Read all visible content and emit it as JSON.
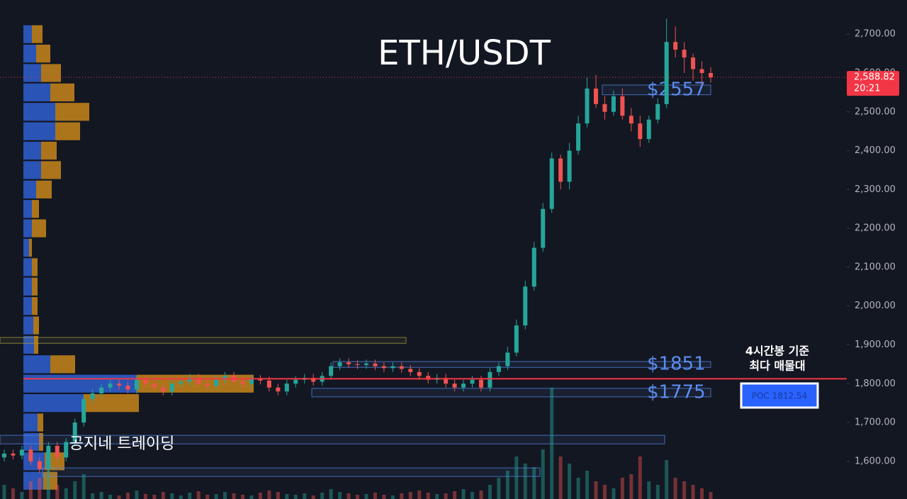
{
  "chart_data": {
    "type": "candlestick",
    "title": "ETH/USDT",
    "ylim": [
      1503,
      2788
    ],
    "yticks": [
      {
        "value": 1600,
        "label": "1,600.00"
      },
      {
        "value": 1700,
        "label": "1,700.00"
      },
      {
        "value": 1800,
        "label": "1,800.00"
      },
      {
        "value": 1900,
        "label": "1,900.00"
      },
      {
        "value": 2000,
        "label": "2,000.00"
      },
      {
        "value": 2100,
        "label": "2,100.00"
      },
      {
        "value": 2200,
        "label": "2,200.00"
      },
      {
        "value": 2300,
        "label": "2,300.00"
      },
      {
        "value": 2400,
        "label": "2,400.00"
      },
      {
        "value": 2500,
        "label": "2,500.00"
      },
      {
        "value": 2600,
        "label": "2,600.00"
      },
      {
        "value": 2700,
        "label": "2,700.00"
      }
    ],
    "up_color": "#26a69a",
    "down_color": "#ef5350",
    "candles": {
      "open": [
        1610,
        1620,
        1615,
        1630,
        1600,
        1580,
        1640,
        1610,
        1650,
        1700,
        1760,
        1775,
        1790,
        1800,
        1795,
        1785,
        1810,
        1800,
        1790,
        1780,
        1800,
        1805,
        1815,
        1800,
        1795,
        1810,
        1820,
        1805,
        1800,
        1812,
        1808,
        1790,
        1780,
        1800,
        1810,
        1815,
        1805,
        1820,
        1845,
        1855,
        1850,
        1848,
        1852,
        1845,
        1840,
        1845,
        1838,
        1830,
        1820,
        1810,
        1815,
        1800,
        1790,
        1800,
        1810,
        1790,
        1830,
        1845,
        1880,
        1950,
        2050,
        2150,
        2250,
        2380,
        2320,
        2400,
        2470,
        2560,
        2520,
        2500,
        2540,
        2490,
        2470,
        2430,
        2480,
        2520,
        2680,
        2660,
        2640,
        2610,
        2600
      ],
      "high": [
        1630,
        1630,
        1640,
        1640,
        1610,
        1650,
        1650,
        1660,
        1710,
        1770,
        1785,
        1800,
        1810,
        1810,
        1805,
        1820,
        1820,
        1810,
        1800,
        1810,
        1815,
        1825,
        1825,
        1810,
        1820,
        1830,
        1830,
        1815,
        1822,
        1822,
        1818,
        1800,
        1810,
        1820,
        1825,
        1825,
        1830,
        1855,
        1865,
        1865,
        1860,
        1862,
        1862,
        1855,
        1855,
        1855,
        1848,
        1840,
        1830,
        1825,
        1825,
        1810,
        1810,
        1820,
        1820,
        1840,
        1855,
        1895,
        1965,
        2065,
        2165,
        2265,
        2395,
        2390,
        2420,
        2490,
        2590,
        2595,
        2540,
        2555,
        2560,
        2510,
        2490,
        2490,
        2535,
        2740,
        2720,
        2680,
        2650,
        2630,
        2615
      ],
      "low": [
        1600,
        1605,
        1605,
        1590,
        1570,
        1570,
        1600,
        1600,
        1640,
        1690,
        1750,
        1765,
        1780,
        1785,
        1775,
        1775,
        1790,
        1780,
        1770,
        1770,
        1790,
        1795,
        1790,
        1785,
        1785,
        1800,
        1795,
        1790,
        1790,
        1798,
        1780,
        1770,
        1770,
        1790,
        1800,
        1795,
        1795,
        1810,
        1835,
        1840,
        1838,
        1838,
        1835,
        1830,
        1830,
        1828,
        1820,
        1810,
        1800,
        1800,
        1790,
        1780,
        1780,
        1790,
        1780,
        1780,
        1820,
        1835,
        1870,
        1940,
        2040,
        2140,
        2240,
        2300,
        2300,
        2390,
        2460,
        2510,
        2480,
        2490,
        2480,
        2450,
        2410,
        2420,
        2470,
        2510,
        2640,
        2600,
        2580,
        2570,
        2575
      ],
      "close": [
        1620,
        1615,
        1630,
        1600,
        1580,
        1640,
        1610,
        1650,
        1700,
        1760,
        1775,
        1790,
        1800,
        1795,
        1785,
        1810,
        1800,
        1790,
        1780,
        1800,
        1805,
        1815,
        1800,
        1795,
        1810,
        1820,
        1805,
        1800,
        1812,
        1808,
        1790,
        1780,
        1800,
        1810,
        1815,
        1805,
        1820,
        1845,
        1855,
        1850,
        1848,
        1852,
        1845,
        1840,
        1845,
        1838,
        1830,
        1820,
        1810,
        1815,
        1800,
        1790,
        1800,
        1810,
        1790,
        1830,
        1845,
        1880,
        1950,
        2050,
        2150,
        2250,
        2380,
        2320,
        2400,
        2470,
        2560,
        2520,
        2500,
        2540,
        2490,
        2470,
        2430,
        2480,
        2520,
        2680,
        2660,
        2640,
        2610,
        2600,
        2588.82
      ]
    },
    "volume": [
      20,
      15,
      10,
      25,
      30,
      40,
      20,
      15,
      25,
      35,
      8,
      10,
      6,
      5,
      9,
      12,
      7,
      6,
      10,
      8,
      5,
      9,
      11,
      6,
      7,
      10,
      8,
      6,
      5,
      9,
      12,
      10,
      7,
      6,
      8,
      5,
      9,
      14,
      10,
      8,
      6,
      7,
      9,
      6,
      5,
      8,
      10,
      12,
      9,
      7,
      8,
      11,
      14,
      10,
      12,
      20,
      30,
      40,
      60,
      50,
      45,
      70,
      157,
      60,
      50,
      30,
      40,
      25,
      20,
      15,
      30,
      35,
      60,
      25,
      20,
      55,
      30,
      25,
      20,
      15,
      10
    ],
    "profile": [
      {
        "price": 2700,
        "buy": 12,
        "sell": 15
      },
      {
        "price": 2650,
        "buy": 18,
        "sell": 20
      },
      {
        "price": 2600,
        "buy": 25,
        "sell": 28
      },
      {
        "price": 2550,
        "buy": 38,
        "sell": 34
      },
      {
        "price": 2500,
        "buy": 45,
        "sell": 48
      },
      {
        "price": 2450,
        "buy": 45,
        "sell": 35
      },
      {
        "price": 2400,
        "buy": 25,
        "sell": 22
      },
      {
        "price": 2350,
        "buy": 25,
        "sell": 28
      },
      {
        "price": 2300,
        "buy": 18,
        "sell": 22
      },
      {
        "price": 2250,
        "buy": 12,
        "sell": 10
      },
      {
        "price": 2200,
        "buy": 12,
        "sell": 20
      },
      {
        "price": 2150,
        "buy": 8,
        "sell": 4
      },
      {
        "price": 2100,
        "buy": 12,
        "sell": 8
      },
      {
        "price": 2050,
        "buy": 12,
        "sell": 8
      },
      {
        "price": 2000,
        "buy": 12,
        "sell": 8
      },
      {
        "price": 1950,
        "buy": 14,
        "sell": 8
      },
      {
        "price": 1900,
        "buy": 15,
        "sell": 6
      },
      {
        "price": 1850,
        "buy": 38,
        "sell": 35
      },
      {
        "price": 1800,
        "buy": 160,
        "sell": 165
      },
      {
        "price": 1750,
        "buy": 85,
        "sell": 78
      },
      {
        "price": 1700,
        "buy": 20,
        "sell": 8
      },
      {
        "price": 1650,
        "buy": 22,
        "sell": 6
      },
      {
        "price": 1600,
        "buy": 30,
        "sell": 28
      },
      {
        "price": 1550,
        "buy": 28,
        "sell": 20
      }
    ],
    "profile_colors": [
      "#2f5fd0",
      "#c8861a"
    ],
    "zones": [
      {
        "low": 1904,
        "high": 1919,
        "color": "#b5a33a"
      },
      {
        "low": 2544,
        "high": 2569,
        "color": "#5b8def",
        "label": "$2557"
      },
      {
        "low": 1842,
        "high": 1857,
        "color": "#5b8def",
        "label": "$1851"
      },
      {
        "low": 1766,
        "high": 1788,
        "color": "#5b8def",
        "label": "$1775"
      },
      {
        "low": 1645,
        "high": 1667,
        "color": "#5b8def"
      },
      {
        "low": 1561,
        "high": 1583,
        "color": "#5b8def"
      }
    ],
    "poc": {
      "value": 1812.54,
      "label": "POC 1812.54"
    },
    "poc_note": [
      "4시간봉 기준",
      "최다 매물대"
    ],
    "last_price": {
      "value": 2588.82,
      "label": "2,588.82"
    },
    "countdown": "20:21",
    "watermark": "공지네 트레이딩"
  }
}
